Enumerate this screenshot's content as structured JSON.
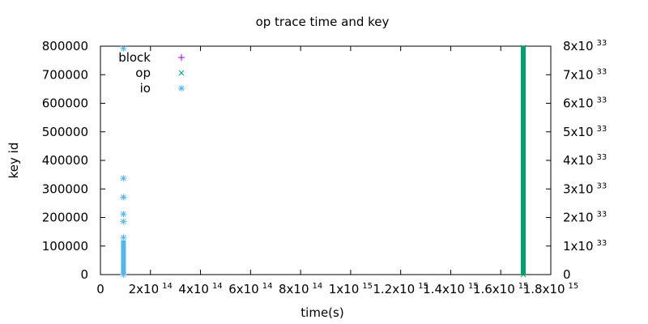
{
  "chart_data": {
    "type": "scatter",
    "title": "op trace time and key",
    "xlabel": "time(s)",
    "ylabel": "key id",
    "xlim": [
      0,
      1800000000000000.0
    ],
    "ylim": [
      0,
      800000
    ],
    "y2lim": [
      0,
      8e+33
    ],
    "grid": false,
    "legend_position": "top-left",
    "x_ticks": [
      {
        "base": "0",
        "exp": ""
      },
      {
        "base": "2x10",
        "exp": "14"
      },
      {
        "base": "4x10",
        "exp": "14"
      },
      {
        "base": "6x10",
        "exp": "14"
      },
      {
        "base": "8x10",
        "exp": "14"
      },
      {
        "base": "1x10",
        "exp": "15"
      },
      {
        "base": "1.2x10",
        "exp": "15"
      },
      {
        "base": "1.4x10",
        "exp": "15"
      },
      {
        "base": "1.6x10",
        "exp": "15"
      },
      {
        "base": "1.8x10",
        "exp": "15"
      }
    ],
    "y_ticks": [
      "0",
      "100000",
      "200000",
      "300000",
      "400000",
      "500000",
      "600000",
      "700000",
      "800000"
    ],
    "y2_ticks": [
      {
        "base": "0",
        "exp": ""
      },
      {
        "base": "1x10",
        "exp": "33"
      },
      {
        "base": "2x10",
        "exp": "33"
      },
      {
        "base": "3x10",
        "exp": "33"
      },
      {
        "base": "4x10",
        "exp": "33"
      },
      {
        "base": "5x10",
        "exp": "33"
      },
      {
        "base": "6x10",
        "exp": "33"
      },
      {
        "base": "7x10",
        "exp": "33"
      },
      {
        "base": "8x10",
        "exp": "33"
      }
    ],
    "series": [
      {
        "name": "block",
        "color": "#9400d3",
        "marker": "plus",
        "points": []
      },
      {
        "name": "op",
        "color": "#009e73",
        "marker": "cross",
        "bands": [
          {
            "x": 1690000000000000.0,
            "y_from": 0,
            "y_to": 800000
          }
        ],
        "points": [
          [
            1690000000000000.0,
            795000
          ],
          [
            1690000000000000.0,
            0
          ]
        ]
      },
      {
        "name": "io",
        "color": "#56b4e9",
        "marker": "asterisk",
        "bands": [
          {
            "x": 92000000000000.0,
            "y_from": 0,
            "y_to": 120000
          }
        ],
        "points": [
          [
            92000000000000.0,
            792000
          ],
          [
            92000000000000.0,
            337000
          ],
          [
            92000000000000.0,
            271000
          ],
          [
            92000000000000.0,
            212000
          ],
          [
            92000000000000.0,
            186000
          ],
          [
            92000000000000.0,
            130000
          ],
          [
            92000000000000.0,
            0
          ]
        ]
      }
    ]
  }
}
